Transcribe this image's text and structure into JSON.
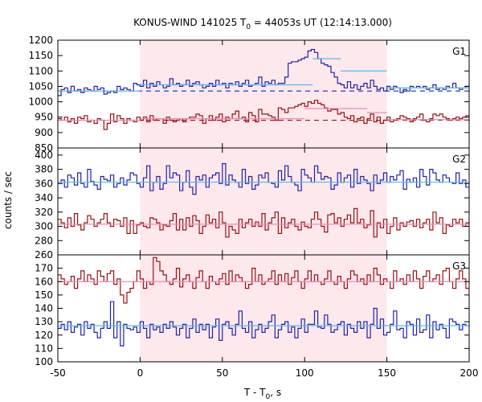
{
  "chart_data": {
    "type": "line",
    "title": "KONUS-WIND 141025 T",
    "title_sub": "0",
    "title_rest": " = 44053s UT (12:14:13.000)",
    "xlabel_main": "T - T",
    "xlabel_sub": "0",
    "xlabel_rest": ", s",
    "ylabel": "counts / sec",
    "xlim": [
      -50,
      200
    ],
    "x_ticks": [
      "-50",
      "0",
      "50",
      "100",
      "150",
      "200"
    ],
    "x_tick_values": [
      -50,
      0,
      50,
      100,
      150,
      200
    ],
    "highlight_interval": [
      0,
      150
    ],
    "colors": {
      "blue": "#2222aa",
      "red": "#991111",
      "fit_blue": "#55bbee",
      "fit_pink": "#ee88bb",
      "shade": "#fde8ec"
    },
    "panels": [
      {
        "label": "G1",
        "ylim": [
          850,
          1200
        ],
        "y_ticks": [
          "850",
          "900",
          "950",
          "1000",
          "1050",
          "1100",
          "1150",
          "1200"
        ],
        "y_tick_values": [
          850,
          900,
          950,
          1000,
          1050,
          1100,
          1150,
          1200
        ],
        "blue_background": 1035,
        "red_background": 940,
        "blue_fit_segments": [
          {
            "x": [
              -50,
              0
            ],
            "y": 1035
          },
          {
            "x": [
              0,
              105
            ],
            "y": 1055
          },
          {
            "x": [
              105,
              122
            ],
            "y": 1140
          },
          {
            "x": [
              122,
              150
            ],
            "y": 1100
          },
          {
            "x": [
              150,
              200
            ],
            "y": 1045
          }
        ],
        "red_fit_segments": [
          {
            "x": [
              -50,
              0
            ],
            "y": 940
          },
          {
            "x": [
              0,
              100
            ],
            "y": 945
          },
          {
            "x": [
              100,
              138
            ],
            "y": 978
          },
          {
            "x": [
              138,
              150
            ],
            "y": 965
          },
          {
            "x": [
              150,
              200
            ],
            "y": 942
          }
        ],
        "blue_series": {
          "name": "",
          "values": [
            1020,
            1040,
            1045,
            1030,
            1050,
            1035,
            1040,
            1030,
            1045,
            1040,
            1035,
            1050,
            1040,
            1045,
            1025,
            1030,
            1035,
            1030,
            1050,
            1040,
            1045,
            1040,
            1035,
            1060,
            1055,
            1050,
            1070,
            1045,
            1060,
            1050,
            1065,
            1055,
            1045,
            1050,
            1075,
            1055,
            1060,
            1050,
            1055,
            1070,
            1050,
            1060,
            1065,
            1055,
            1045,
            1050,
            1060,
            1050,
            1070,
            1055,
            1060,
            1045,
            1060,
            1055,
            1065,
            1050,
            1060,
            1070,
            1050,
            1055,
            1060,
            1080,
            1050,
            1065,
            1060,
            1070,
            1055,
            1060,
            1060,
            1080,
            1125,
            1130,
            1130,
            1135,
            1140,
            1145,
            1165,
            1170,
            1160,
            1140,
            1125,
            1120,
            1115,
            1095,
            1080,
            1060,
            1055,
            1045,
            1065,
            1045,
            1055,
            1040,
            1050,
            1060,
            1045,
            1070,
            1050,
            1040,
            1045,
            1035,
            1050,
            1040,
            1050,
            1045,
            1030,
            1040,
            1035,
            1050,
            1045,
            1050,
            1045,
            1050,
            1040,
            1045,
            1055,
            1040,
            1045,
            1040,
            1050,
            1045,
            1060,
            1045,
            1040,
            1045,
            1050
          ]
        },
        "red_series": {
          "name": "",
          "values": [
            945,
            940,
            950,
            935,
            945,
            930,
            950,
            945,
            955,
            935,
            940,
            930,
            945,
            940,
            910,
            930,
            960,
            935,
            955,
            945,
            930,
            945,
            940,
            935,
            950,
            940,
            950,
            935,
            955,
            940,
            945,
            945,
            930,
            950,
            940,
            935,
            940,
            945,
            935,
            945,
            950,
            950,
            960,
            955,
            930,
            945,
            955,
            940,
            950,
            960,
            935,
            950,
            945,
            960,
            970,
            945,
            950,
            935,
            965,
            955,
            935,
            975,
            960,
            960,
            955,
            950,
            940,
            980,
            975,
            965,
            980,
            980,
            985,
            990,
            995,
            985,
            1000,
            995,
            1005,
            995,
            990,
            980,
            970,
            975,
            975,
            960,
            965,
            950,
            945,
            955,
            935,
            945,
            950,
            930,
            945,
            960,
            935,
            950,
            930,
            940,
            950,
            935,
            940,
            945,
            955,
            950,
            945,
            935,
            945,
            950,
            960,
            940,
            935,
            945,
            960,
            955,
            960,
            950,
            945,
            940,
            945,
            950,
            945,
            950,
            955
          ]
        }
      },
      {
        "label": "G2",
        "ylim": [
          260,
          410
        ],
        "y_ticks": [
          "260",
          "280",
          "300",
          "320",
          "340",
          "360",
          "380",
          "400"
        ],
        "y_tick_values": [
          260,
          280,
          300,
          320,
          340,
          360,
          380,
          400
        ],
        "blue_fit_segments": [
          {
            "x": [
              -50,
              200
            ],
            "y": 362
          }
        ],
        "red_fit_segments": [
          {
            "x": [
              -50,
              200
            ],
            "y": 303
          }
        ],
        "blue_series": {
          "name": "",
          "values": [
            362,
            365,
            355,
            372,
            368,
            358,
            375,
            360,
            355,
            380,
            363,
            358,
            352,
            370,
            366,
            364,
            372,
            355,
            360,
            368,
            358,
            365,
            375,
            372,
            360,
            355,
            368,
            385,
            350,
            362,
            370,
            352,
            360,
            385,
            368,
            375,
            372,
            350,
            362,
            378,
            355,
            345,
            370,
            365,
            372,
            355,
            368,
            372,
            375,
            360,
            388,
            358,
            372,
            365,
            362,
            355,
            380,
            360,
            370,
            352,
            358,
            372,
            368,
            375,
            362,
            360,
            355,
            378,
            365,
            385,
            370,
            362,
            358,
            350,
            380,
            372,
            368,
            362,
            385,
            375,
            366,
            370,
            368,
            352,
            358,
            375,
            362,
            368,
            372,
            355,
            380,
            360,
            370,
            365,
            360,
            350,
            372,
            360,
            365,
            375,
            362,
            370,
            365,
            372,
            378,
            352,
            366,
            362,
            368,
            355,
            380,
            370,
            358,
            380,
            375,
            365,
            362,
            372,
            368,
            362,
            360,
            375,
            360,
            365,
            355
          ]
        },
        "red_series": {
          "name": "",
          "values": [
            310,
            305,
            298,
            312,
            300,
            318,
            302,
            295,
            305,
            315,
            310,
            300,
            305,
            310,
            318,
            305,
            300,
            310,
            308,
            300,
            312,
            290,
            308,
            290,
            302,
            305,
            300,
            298,
            312,
            310,
            305,
            295,
            302,
            300,
            308,
            318,
            295,
            310,
            295,
            312,
            300,
            315,
            308,
            290,
            300,
            316,
            305,
            310,
            298,
            320,
            305,
            285,
            300,
            295,
            290,
            310,
            298,
            305,
            310,
            300,
            306,
            300,
            318,
            295,
            305,
            312,
            320,
            290,
            312,
            298,
            305,
            310,
            300,
            295,
            306,
            300,
            298,
            310,
            320,
            310,
            300,
            292,
            316,
            318,
            305,
            312,
            300,
            310,
            316,
            305,
            325,
            305,
            310,
            298,
            302,
            322,
            285,
            305,
            298,
            310,
            290,
            300,
            312,
            295,
            305,
            300,
            306,
            308,
            300,
            310,
            298,
            305,
            310,
            295,
            320,
            305,
            312,
            290,
            302,
            300,
            310,
            305,
            310,
            300,
            305
          ]
        }
      },
      {
        "label": "G3",
        "ylim": [
          100,
          180
        ],
        "y_ticks": [
          "100",
          "110",
          "120",
          "130",
          "140",
          "150",
          "160",
          "170"
        ],
        "y_tick_values": [
          100,
          110,
          120,
          130,
          140,
          150,
          160,
          170
        ],
        "blue_fit_segments": [
          {
            "x": [
              -50,
              200
            ],
            "y": 127
          }
        ],
        "red_fit_segments": [
          {
            "x": [
              -50,
              200
            ],
            "y": 160
          }
        ],
        "blue_series": {
          "name": "",
          "values": [
            125,
            128,
            124,
            130,
            122,
            126,
            128,
            120,
            130,
            125,
            128,
            122,
            118,
            125,
            130,
            125,
            145,
            118,
            130,
            112,
            128,
            125,
            124,
            126,
            122,
            130,
            125,
            118,
            128,
            124,
            126,
            122,
            128,
            125,
            130,
            126,
            120,
            125,
            128,
            118,
            125,
            132,
            122,
            128,
            124,
            128,
            118,
            126,
            132,
            116,
            128,
            130,
            125,
            120,
            128,
            138,
            125,
            122,
            130,
            118,
            124,
            128,
            122,
            125,
            130,
            135,
            118,
            124,
            128,
            130,
            122,
            126,
            118,
            125,
            132,
            122,
            128,
            128,
            138,
            126,
            125,
            135,
            128,
            122,
            124,
            128,
            130,
            120,
            128,
            125,
            122,
            130,
            125,
            130,
            118,
            128,
            140,
            125,
            132,
            120,
            122,
            128,
            138,
            124,
            125,
            118,
            130,
            128,
            120,
            132,
            122,
            124,
            135,
            118,
            130,
            124,
            128,
            125,
            118,
            132,
            130,
            128,
            124,
            128,
            127
          ]
        },
        "red_series": {
          "name": "",
          "values": [
            165,
            162,
            158,
            160,
            164,
            155,
            162,
            168,
            160,
            165,
            162,
            158,
            168,
            164,
            160,
            166,
            168,
            158,
            162,
            150,
            144,
            152,
            155,
            160,
            168,
            162,
            155,
            160,
            158,
            178,
            175,
            168,
            165,
            160,
            158,
            162,
            170,
            156,
            162,
            165,
            160,
            155,
            163,
            168,
            160,
            155,
            164,
            160,
            158,
            162,
            166,
            158,
            168,
            160,
            165,
            163,
            160,
            155,
            158,
            170,
            160,
            165,
            158,
            160,
            162,
            168,
            158,
            165,
            160,
            166,
            158,
            163,
            168,
            160,
            155,
            162,
            168,
            160,
            165,
            160,
            158,
            162,
            168,
            160,
            158,
            164,
            160,
            155,
            162,
            168,
            165,
            160,
            162,
            158,
            165,
            160,
            170,
            165,
            158,
            162,
            160,
            155,
            168,
            160,
            162,
            158,
            165,
            160,
            168,
            162,
            155,
            164,
            168,
            160,
            162,
            165,
            158,
            168,
            170,
            160,
            155,
            162,
            168,
            162,
            155
          ]
        }
      }
    ]
  }
}
